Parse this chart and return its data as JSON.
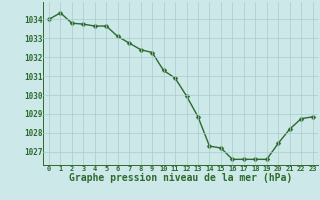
{
  "x": [
    0,
    1,
    2,
    3,
    4,
    5,
    6,
    7,
    8,
    9,
    10,
    11,
    12,
    13,
    14,
    15,
    16,
    17,
    18,
    19,
    20,
    21,
    22,
    23
  ],
  "y": [
    1034.0,
    1034.35,
    1033.8,
    1033.75,
    1033.65,
    1033.65,
    1033.1,
    1032.75,
    1032.4,
    1032.25,
    1031.3,
    1030.9,
    1029.95,
    1028.85,
    1027.3,
    1027.2,
    1026.6,
    1026.6,
    1026.6,
    1026.6,
    1027.45,
    1028.2,
    1028.75,
    1028.85
  ],
  "line_color": "#2d6a2d",
  "marker": "D",
  "markersize": 2.5,
  "linewidth": 1.0,
  "bg_color": "#cce8e8",
  "grid_color": "#aacccc",
  "xlabel": "Graphe pression niveau de la mer (hPa)",
  "xlabel_fontsize": 7,
  "xlabel_color": "#2d6a2d",
  "tick_color": "#2d6a2d",
  "ylim": [
    1026.3,
    1034.9
  ],
  "yticks": [
    1027,
    1028,
    1029,
    1030,
    1031,
    1032,
    1033,
    1034
  ],
  "xticks": [
    0,
    1,
    2,
    3,
    4,
    5,
    6,
    7,
    8,
    9,
    10,
    11,
    12,
    13,
    14,
    15,
    16,
    17,
    18,
    19,
    20,
    21,
    22,
    23
  ]
}
